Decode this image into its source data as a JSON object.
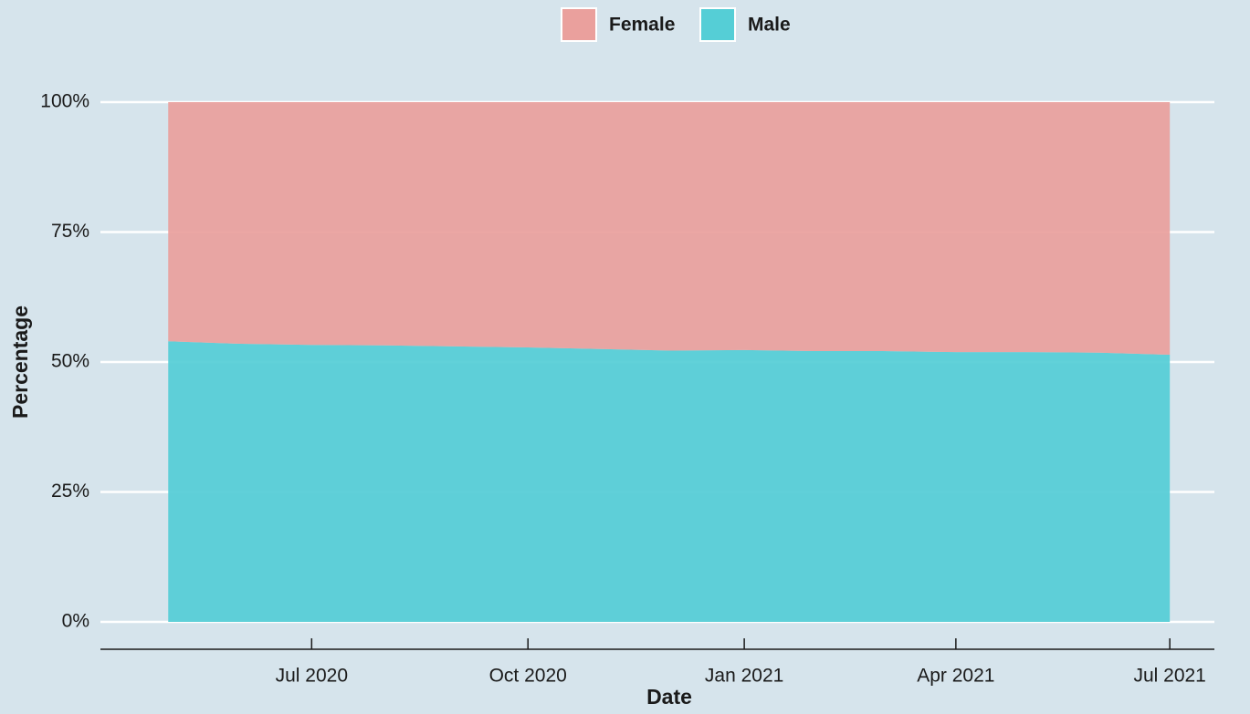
{
  "chart_data": {
    "type": "area",
    "stacked": true,
    "x_label": "Date",
    "y_label": "Percentage",
    "x": [
      "2020-05",
      "2020-06",
      "2020-07",
      "2020-08",
      "2020-09",
      "2020-10",
      "2020-11",
      "2020-12",
      "2021-01",
      "2021-02",
      "2021-03",
      "2021-04",
      "2021-05",
      "2021-06",
      "2021-07"
    ],
    "series": [
      {
        "name": "Female",
        "color": "#eaa09d",
        "values": [
          46,
          46.5,
          46.7,
          46.8,
          47,
          47.2,
          47.5,
          47.8,
          47.7,
          47.9,
          47.9,
          48.1,
          48.1,
          48.2,
          48.6
        ]
      },
      {
        "name": "Male",
        "color": "#55ced6",
        "values": [
          54,
          53.5,
          53.3,
          53.2,
          53,
          52.8,
          52.5,
          52.2,
          52.3,
          52.1,
          52.1,
          51.9,
          51.9,
          51.8,
          51.4
        ]
      }
    ],
    "xlim": [
      "2020-04",
      "2021-08"
    ],
    "xticks": [
      {
        "value": "2020-07",
        "label": "Jul 2020"
      },
      {
        "value": "2020-10",
        "label": "Oct 2020"
      },
      {
        "value": "2021-01",
        "label": "Jan 2021"
      },
      {
        "value": "2021-04",
        "label": "Apr 2021"
      },
      {
        "value": "2021-07",
        "label": "Jul 2021"
      }
    ],
    "ylim": [
      0,
      100
    ],
    "yticks": [
      {
        "value": 0,
        "label": "0%"
      },
      {
        "value": 25,
        "label": "25%"
      },
      {
        "value": 50,
        "label": "50%"
      },
      {
        "value": 75,
        "label": "75%"
      },
      {
        "value": 100,
        "label": "100%"
      }
    ],
    "grid": true,
    "legend": "top"
  }
}
